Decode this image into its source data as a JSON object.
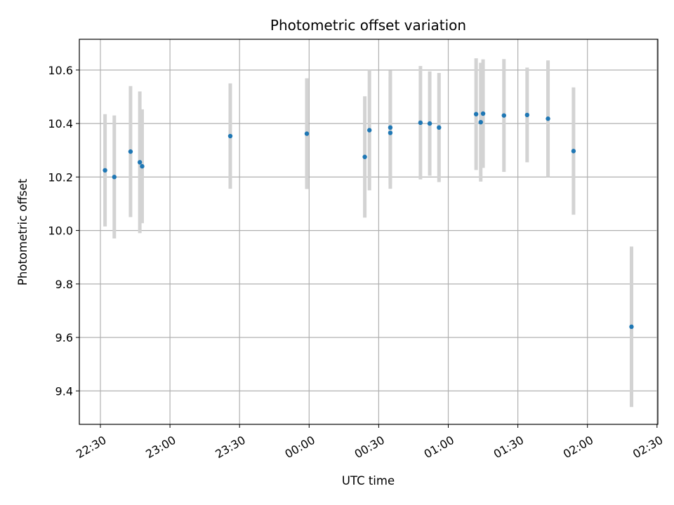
{
  "chart_data": {
    "type": "scatter",
    "title": "Photometric offset variation",
    "xlabel": "UTC time",
    "ylabel": "Photometric offset",
    "x_tick_labels": [
      "22:30",
      "23:00",
      "23:30",
      "00:00",
      "00:30",
      "01:00",
      "01:30",
      "02:00",
      "02:30"
    ],
    "y_ticks": [
      9.4,
      9.6,
      9.8,
      10.0,
      10.2,
      10.4,
      10.6
    ],
    "y_tick_labels": [
      "9.4",
      "9.6",
      "9.8",
      "10.0",
      "10.2",
      "10.4",
      "10.6"
    ],
    "ylim": [
      9.275,
      10.715
    ],
    "grid": true,
    "point_color": "#1f77b4",
    "errorbar_color": "#d3d3d3",
    "points": [
      {
        "t": "22:32",
        "y": 10.225,
        "err": 0.21
      },
      {
        "t": "22:36",
        "y": 10.2,
        "err": 0.23
      },
      {
        "t": "22:43",
        "y": 10.295,
        "err": 0.245
      },
      {
        "t": "22:47",
        "y": 10.255,
        "err": 0.265
      },
      {
        "t": "22:48",
        "y": 10.24,
        "err": 0.213
      },
      {
        "t": "23:26",
        "y": 10.353,
        "err": 0.197
      },
      {
        "t": "23:59",
        "y": 10.362,
        "err": 0.207
      },
      {
        "t": "00:24",
        "y": 10.275,
        "err": 0.227
      },
      {
        "t": "00:26",
        "y": 10.375,
        "err": 0.225
      },
      {
        "t": "00:35",
        "y": 10.365,
        "err": 0.209
      },
      {
        "t": "00:35",
        "y": 10.385,
        "err": 0.213
      },
      {
        "t": "00:48",
        "y": 10.403,
        "err": 0.212
      },
      {
        "t": "00:52",
        "y": 10.4,
        "err": 0.195
      },
      {
        "t": "00:56",
        "y": 10.385,
        "err": 0.204
      },
      {
        "t": "01:12",
        "y": 10.435,
        "err": 0.209
      },
      {
        "t": "01:14",
        "y": 10.405,
        "err": 0.222
      },
      {
        "t": "01:15",
        "y": 10.437,
        "err": 0.203
      },
      {
        "t": "01:24",
        "y": 10.43,
        "err": 0.211
      },
      {
        "t": "01:34",
        "y": 10.432,
        "err": 0.177
      },
      {
        "t": "01:43",
        "y": 10.418,
        "err": 0.218
      },
      {
        "t": "01:54",
        "y": 10.297,
        "err": 0.238
      },
      {
        "t": "02:19",
        "y": 9.64,
        "err": 0.3
      }
    ]
  }
}
